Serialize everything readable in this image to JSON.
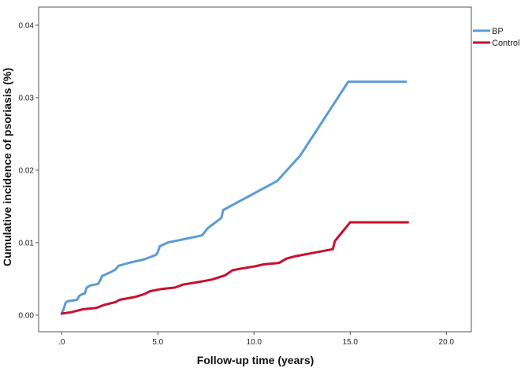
{
  "chart_data": {
    "type": "line",
    "xlabel": "Follow-up time (years)",
    "ylabel": "Cumulative incidence of psoriasis (%)",
    "xlim": [
      -1.2,
      21.3
    ],
    "ylim": [
      -0.0023,
      0.0425
    ],
    "x_ticks": [
      0,
      5,
      10,
      15,
      20
    ],
    "x_tick_labels": [
      ".0",
      "5.0",
      "10.0",
      "15.0",
      "20.0"
    ],
    "y_ticks": [
      0,
      0.01,
      0.02,
      0.03,
      0.04
    ],
    "y_tick_labels": [
      "0.00",
      "0.01",
      "0.02",
      "0.03",
      "0.04"
    ],
    "grid": false,
    "legend_position": "top-right",
    "series": [
      {
        "name": "BP",
        "color": "#5b9bd5",
        "points": [
          [
            0,
            0.0003
          ],
          [
            0.1,
            0.0008
          ],
          [
            0.2,
            0.0017
          ],
          [
            0.3,
            0.0019
          ],
          [
            0.8,
            0.0021
          ],
          [
            0.9,
            0.0026
          ],
          [
            1.0,
            0.0028
          ],
          [
            1.2,
            0.003
          ],
          [
            1.3,
            0.0038
          ],
          [
            1.5,
            0.0041
          ],
          [
            1.9,
            0.0043
          ],
          [
            2.0,
            0.0048
          ],
          [
            2.1,
            0.0054
          ],
          [
            2.6,
            0.006
          ],
          [
            2.8,
            0.0063
          ],
          [
            2.95,
            0.0068
          ],
          [
            3.5,
            0.0072
          ],
          [
            4.3,
            0.0077
          ],
          [
            4.9,
            0.0083
          ],
          [
            5.0,
            0.0087
          ],
          [
            5.1,
            0.0095
          ],
          [
            5.5,
            0.01
          ],
          [
            7.3,
            0.011
          ],
          [
            7.6,
            0.012
          ],
          [
            8.3,
            0.0134
          ],
          [
            8.4,
            0.0145
          ],
          [
            11.2,
            0.0185
          ],
          [
            12.4,
            0.022
          ],
          [
            14.9,
            0.0322
          ],
          [
            17.9,
            0.0322
          ]
        ]
      },
      {
        "name": "Control",
        "color": "#c8102e",
        "points": [
          [
            0,
            0.0002
          ],
          [
            0.5,
            0.0004
          ],
          [
            0.8,
            0.0006
          ],
          [
            1.1,
            0.0008
          ],
          [
            1.8,
            0.001
          ],
          [
            2.2,
            0.0014
          ],
          [
            2.8,
            0.0018
          ],
          [
            3.0,
            0.0021
          ],
          [
            3.8,
            0.0025
          ],
          [
            4.3,
            0.0029
          ],
          [
            4.6,
            0.0033
          ],
          [
            5.2,
            0.0036
          ],
          [
            5.9,
            0.0038
          ],
          [
            6.3,
            0.0042
          ],
          [
            7.2,
            0.0046
          ],
          [
            7.8,
            0.0049
          ],
          [
            8.5,
            0.0055
          ],
          [
            8.9,
            0.0062
          ],
          [
            9.3,
            0.0064
          ],
          [
            10.0,
            0.0067
          ],
          [
            10.5,
            0.007
          ],
          [
            11.3,
            0.0072
          ],
          [
            11.7,
            0.0078
          ],
          [
            12.1,
            0.0081
          ],
          [
            14.1,
            0.0091
          ],
          [
            14.2,
            0.0102
          ],
          [
            14.6,
            0.0115
          ],
          [
            15.0,
            0.0128
          ],
          [
            18.0,
            0.0128
          ]
        ]
      }
    ]
  }
}
